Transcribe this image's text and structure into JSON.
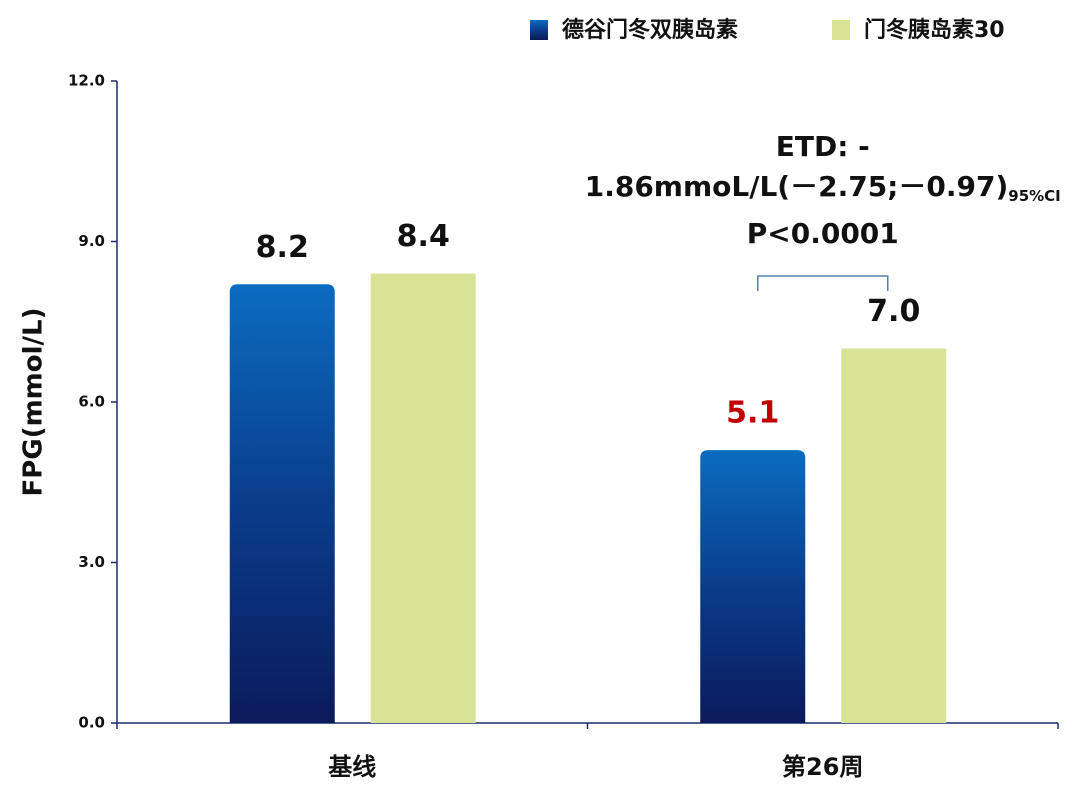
{
  "chart_data": {
    "type": "bar",
    "y_label": "FPG(mmol/L)",
    "categories": [
      "基线",
      "第26周"
    ],
    "series": [
      {
        "name": "德谷门冬双胰岛素",
        "color": "#0b62b3",
        "values": [
          8.2,
          5.1
        ],
        "value_labels": [
          "8.2",
          "5.1"
        ],
        "value_label_colors": [
          "#111111",
          "#c00000"
        ]
      },
      {
        "name": "门冬胰岛素30",
        "color": "#d9e396",
        "values": [
          8.4,
          7.0
        ],
        "value_labels": [
          "8.4",
          "7.0"
        ],
        "value_label_colors": [
          "#111111",
          "#111111"
        ]
      }
    ],
    "ylim": [
      0,
      12
    ],
    "yticks": [
      {
        "value": 0,
        "label": "0.0"
      },
      {
        "value": 3,
        "label": "3.0"
      },
      {
        "value": 6,
        "label": "6.0"
      },
      {
        "value": 9,
        "label": "9.0"
      },
      {
        "value": 12,
        "label": "12.0"
      }
    ],
    "annotation": {
      "lines": [
        "ETD: -",
        "1.86mmoL/L(－2.75;－0.97)",
        "P<0.0001"
      ],
      "subscript": "95%CI"
    },
    "legend": "top-right"
  }
}
